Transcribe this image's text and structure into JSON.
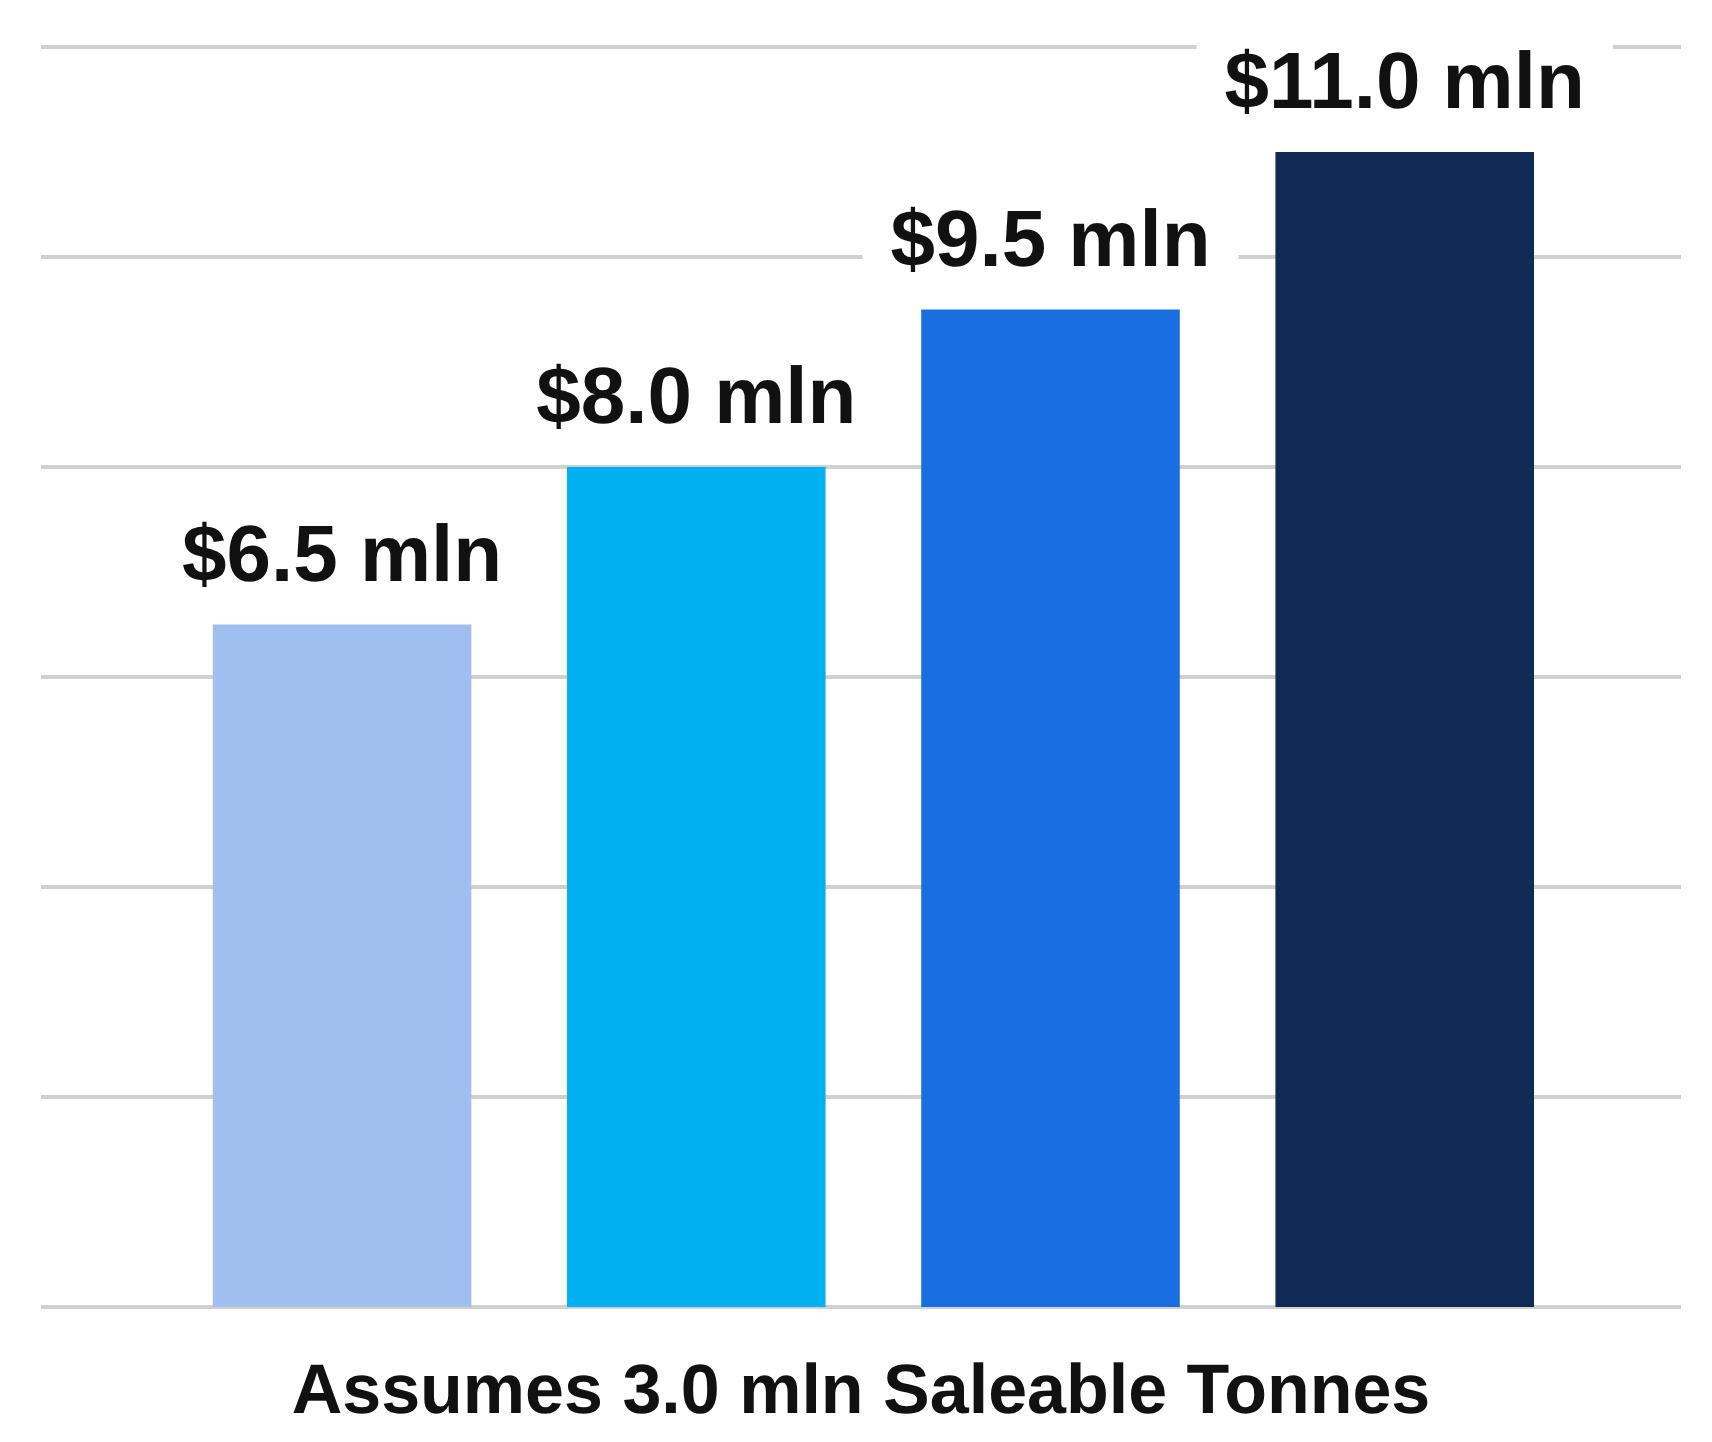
{
  "chart_data": {
    "type": "bar",
    "categories": [
      null,
      null,
      null,
      null
    ],
    "values": [
      6.5,
      8.0,
      9.5,
      11.0
    ],
    "colors": [
      "#a0bef0",
      "#00b0f0",
      "#1a6fe0",
      "#102a56"
    ],
    "value_labels": [
      "$6.5 mln",
      "$8.0 mln",
      "$9.5 mln",
      "$11.0 mln"
    ],
    "xlabel": "Assumes 3.0 mln Saleable Tonnes",
    "yticks": [
      {
        "value": 0,
        "label": null
      },
      {
        "value": 2,
        "label": null
      },
      {
        "value": 4,
        "label": null
      },
      {
        "value": 6,
        "label": null
      },
      {
        "value": 8,
        "label": null
      },
      {
        "value": 10,
        "label": null
      },
      {
        "value": 12,
        "label": null
      }
    ],
    "grid": "y"
  }
}
